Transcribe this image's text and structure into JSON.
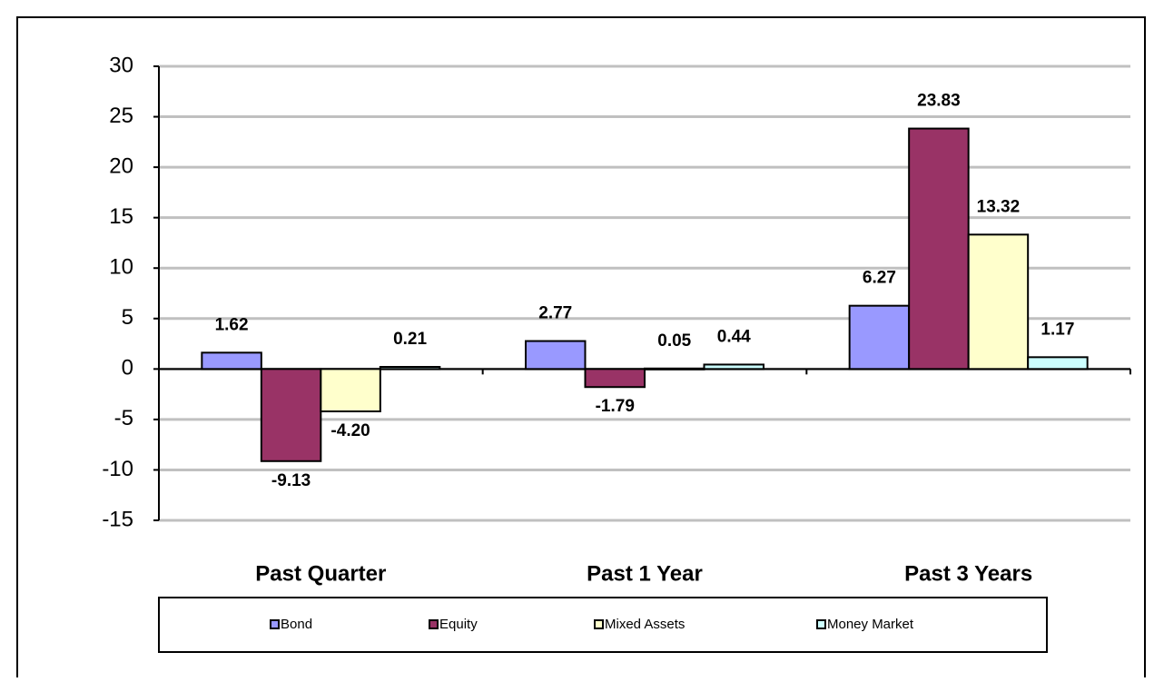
{
  "chart_data": {
    "type": "bar",
    "categories": [
      "Past Quarter",
      "Past 1 Year",
      "Past 3 Years"
    ],
    "series": [
      {
        "name": "Bond",
        "color": "#9999ff",
        "values": [
          1.62,
          2.77,
          6.27
        ],
        "value_labels": [
          "1.62",
          "2.77",
          "6.27"
        ]
      },
      {
        "name": "Equity",
        "color": "#993366",
        "values": [
          -9.13,
          -1.79,
          23.83
        ],
        "value_labels": [
          "-9.13",
          "-1.79",
          "23.83"
        ]
      },
      {
        "name": "Mixed Assets",
        "color": "#ffffcc",
        "values": [
          -4.2,
          0.05,
          13.32
        ],
        "value_labels": [
          "-4.20",
          "0.05",
          "13.32"
        ]
      },
      {
        "name": "Money Market",
        "color": "#ccffff",
        "values": [
          0.21,
          0.44,
          1.17
        ],
        "value_labels": [
          "0.21",
          "0.44",
          "1.17"
        ]
      }
    ],
    "ylim": [
      -15,
      30
    ],
    "yticks": [
      -15,
      -10,
      -5,
      0,
      5,
      10,
      15,
      20,
      25,
      30
    ],
    "grid": true
  }
}
